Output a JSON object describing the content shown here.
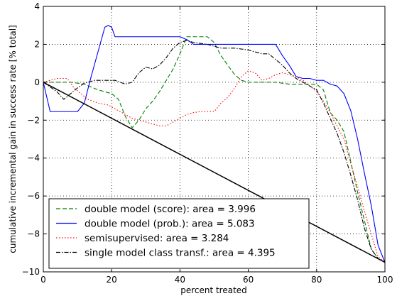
{
  "chart_data": {
    "type": "line",
    "title": "",
    "xlabel": "percent treated",
    "ylabel": "cumulative incremental gain in success rate [% total]",
    "xlim": [
      0,
      100
    ],
    "ylim": [
      -10,
      4
    ],
    "x_ticks": [
      0,
      20,
      40,
      60,
      80,
      100
    ],
    "y_ticks": [
      -10,
      -8,
      -6,
      -4,
      -2,
      0,
      2,
      4
    ],
    "grid": true,
    "legend_position": "lower-left",
    "series": [
      {
        "name": "double model (score):  area = 3.996",
        "color": "#008000",
        "dash": "dashed",
        "points": [
          [
            0,
            0
          ],
          [
            4,
            0
          ],
          [
            8,
            0
          ],
          [
            12,
            -0.1
          ],
          [
            16,
            -0.4
          ],
          [
            20,
            -0.6
          ],
          [
            22,
            -0.9
          ],
          [
            24,
            -1.8
          ],
          [
            26,
            -2.4
          ],
          [
            28,
            -2.0
          ],
          [
            30,
            -1.4
          ],
          [
            32,
            -1.0
          ],
          [
            34,
            -0.5
          ],
          [
            36,
            0.1
          ],
          [
            38,
            0.7
          ],
          [
            40,
            1.5
          ],
          [
            42,
            2.4
          ],
          [
            45,
            2.4
          ],
          [
            48,
            2.4
          ],
          [
            50,
            2.1
          ],
          [
            52,
            1.4
          ],
          [
            54,
            0.9
          ],
          [
            56,
            0.4
          ],
          [
            58,
            0.1
          ],
          [
            60,
            0
          ],
          [
            64,
            0
          ],
          [
            68,
            0
          ],
          [
            72,
            -0.1
          ],
          [
            76,
            -0.1
          ],
          [
            80,
            -0.1
          ],
          [
            82,
            -0.4
          ],
          [
            84,
            -1.6
          ],
          [
            86,
            -2.0
          ],
          [
            88,
            -2.6
          ],
          [
            90,
            -4.2
          ],
          [
            92,
            -5.8
          ],
          [
            94,
            -7.3
          ],
          [
            96,
            -8.8
          ],
          [
            98,
            -9.3
          ],
          [
            100,
            -9.5
          ]
        ]
      },
      {
        "name": "double model (prob.):  area = 5.083",
        "color": "#0000ff",
        "dash": "solid",
        "points": [
          [
            0,
            0
          ],
          [
            2,
            -1.55
          ],
          [
            6,
            -1.55
          ],
          [
            10,
            -1.55
          ],
          [
            12,
            -1.1
          ],
          [
            14,
            0.3
          ],
          [
            16,
            1.6
          ],
          [
            18,
            2.9
          ],
          [
            19,
            3.0
          ],
          [
            20,
            2.9
          ],
          [
            21,
            2.4
          ],
          [
            30,
            2.4
          ],
          [
            40,
            2.4
          ],
          [
            42,
            2.25
          ],
          [
            44,
            2.0
          ],
          [
            54,
            2.0
          ],
          [
            64,
            2.0
          ],
          [
            68,
            2.0
          ],
          [
            70,
            1.4
          ],
          [
            72,
            0.9
          ],
          [
            74,
            0.3
          ],
          [
            76,
            0.2
          ],
          [
            78,
            0.2
          ],
          [
            80,
            0.1
          ],
          [
            82,
            0.1
          ],
          [
            84,
            -0.1
          ],
          [
            86,
            -0.2
          ],
          [
            88,
            -0.6
          ],
          [
            90,
            -1.5
          ],
          [
            92,
            -3.0
          ],
          [
            94,
            -4.8
          ],
          [
            96,
            -6.5
          ],
          [
            98,
            -8.6
          ],
          [
            100,
            -9.5
          ]
        ]
      },
      {
        "name": "semisupervised:  area = 3.284",
        "color": "#ff0000",
        "dash": "dotted",
        "points": [
          [
            0,
            0
          ],
          [
            4,
            0.2
          ],
          [
            7,
            0.2
          ],
          [
            9,
            -0.3
          ],
          [
            11,
            -0.6
          ],
          [
            13,
            -0.9
          ],
          [
            16,
            -1.1
          ],
          [
            19,
            -1.2
          ],
          [
            22,
            -1.5
          ],
          [
            26,
            -1.9
          ],
          [
            30,
            -2.1
          ],
          [
            34,
            -2.3
          ],
          [
            36,
            -2.3
          ],
          [
            38,
            -2.1
          ],
          [
            40,
            -1.9
          ],
          [
            42,
            -1.7
          ],
          [
            44,
            -1.6
          ],
          [
            46,
            -1.55
          ],
          [
            50,
            -1.55
          ],
          [
            52,
            -1.1
          ],
          [
            54,
            -0.8
          ],
          [
            56,
            -0.3
          ],
          [
            58,
            0.3
          ],
          [
            60,
            0.6
          ],
          [
            62,
            0.5
          ],
          [
            64,
            0.1
          ],
          [
            66,
            0.2
          ],
          [
            68,
            0.4
          ],
          [
            70,
            0.5
          ],
          [
            72,
            0.4
          ],
          [
            74,
            0.3
          ],
          [
            76,
            0.1
          ],
          [
            78,
            -0.2
          ],
          [
            80,
            -0.5
          ],
          [
            82,
            -1.0
          ],
          [
            84,
            -1.6
          ],
          [
            86,
            -2.3
          ],
          [
            88,
            -3.0
          ],
          [
            90,
            -4.3
          ],
          [
            92,
            -5.5
          ],
          [
            94,
            -6.8
          ],
          [
            96,
            -8.0
          ],
          [
            98,
            -9.2
          ],
          [
            100,
            -9.5
          ]
        ]
      },
      {
        "name": "single model class transf.:  area = 4.395",
        "color": "#000000",
        "dash": "dashdot",
        "points": [
          [
            0,
            0
          ],
          [
            4,
            -0.5
          ],
          [
            6,
            -0.9
          ],
          [
            8,
            -0.6
          ],
          [
            10,
            -0.3
          ],
          [
            12,
            -0.05
          ],
          [
            15,
            0.1
          ],
          [
            18,
            0.1
          ],
          [
            21,
            0.1
          ],
          [
            24,
            -0.1
          ],
          [
            26,
            0
          ],
          [
            28,
            0.5
          ],
          [
            30,
            0.8
          ],
          [
            32,
            0.7
          ],
          [
            34,
            0.9
          ],
          [
            36,
            1.3
          ],
          [
            38,
            1.8
          ],
          [
            40,
            2.1
          ],
          [
            42,
            2.2
          ],
          [
            44,
            2.1
          ],
          [
            48,
            2.0
          ],
          [
            52,
            1.8
          ],
          [
            56,
            1.8
          ],
          [
            60,
            1.7
          ],
          [
            64,
            1.5
          ],
          [
            66,
            1.5
          ],
          [
            68,
            1.2
          ],
          [
            70,
            0.9
          ],
          [
            72,
            0.5
          ],
          [
            74,
            0.2
          ],
          [
            76,
            0
          ],
          [
            78,
            -0.2
          ],
          [
            80,
            -0.4
          ],
          [
            82,
            -1.1
          ],
          [
            84,
            -1.9
          ],
          [
            86,
            -2.7
          ],
          [
            88,
            -3.7
          ],
          [
            90,
            -4.9
          ],
          [
            92,
            -6.2
          ],
          [
            94,
            -7.7
          ],
          [
            96,
            -8.8
          ],
          [
            98,
            -9.3
          ],
          [
            100,
            -9.5
          ]
        ]
      },
      {
        "name": "",
        "color": "#000000",
        "dash": "solid",
        "points": [
          [
            0,
            0
          ],
          [
            100,
            -9.5
          ]
        ]
      }
    ]
  }
}
